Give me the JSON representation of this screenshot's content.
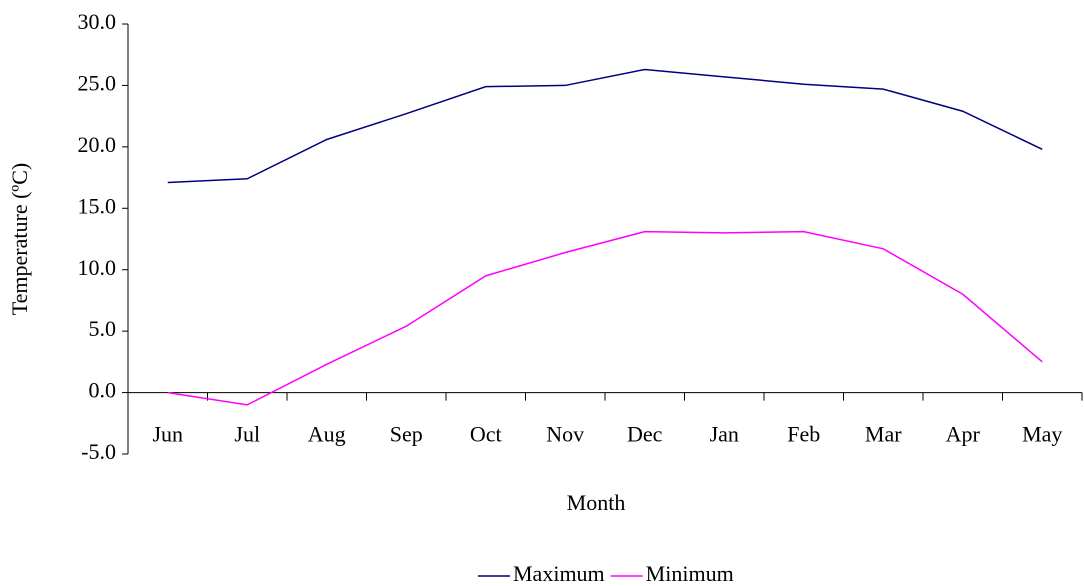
{
  "chart_data": {
    "type": "line",
    "x_label": "Month",
    "y_label": "Temperature (ºC)",
    "categories": [
      "Jun",
      "Jul",
      "Aug",
      "Sep",
      "Oct",
      "Nov",
      "Dec",
      "Jan",
      "Feb",
      "Mar",
      "Apr",
      "May"
    ],
    "series": [
      {
        "name": "Maximum",
        "color": "#000080",
        "values": [
          17.1,
          17.4,
          20.6,
          22.7,
          24.9,
          25.0,
          26.3,
          25.7,
          25.1,
          24.7,
          22.9,
          19.8
        ]
      },
      {
        "name": "Minimum",
        "color": "#ff00ff",
        "values": [
          0.0,
          -1.0,
          2.3,
          5.4,
          9.5,
          11.4,
          13.1,
          13.0,
          13.1,
          11.7,
          8.0,
          2.5
        ]
      }
    ],
    "ylim": [
      -5,
      30
    ],
    "yticks": [
      {
        "value": -5,
        "label": "-5.0"
      },
      {
        "value": 0,
        "label": "0.0"
      },
      {
        "value": 5,
        "label": "5.0"
      },
      {
        "value": 10,
        "label": "10.0"
      },
      {
        "value": 15,
        "label": "15.0"
      },
      {
        "value": 20,
        "label": "20.0"
      },
      {
        "value": 25,
        "label": "25.0"
      },
      {
        "value": 30,
        "label": "30.0"
      }
    ],
    "grid": false,
    "legend": "bottom"
  }
}
